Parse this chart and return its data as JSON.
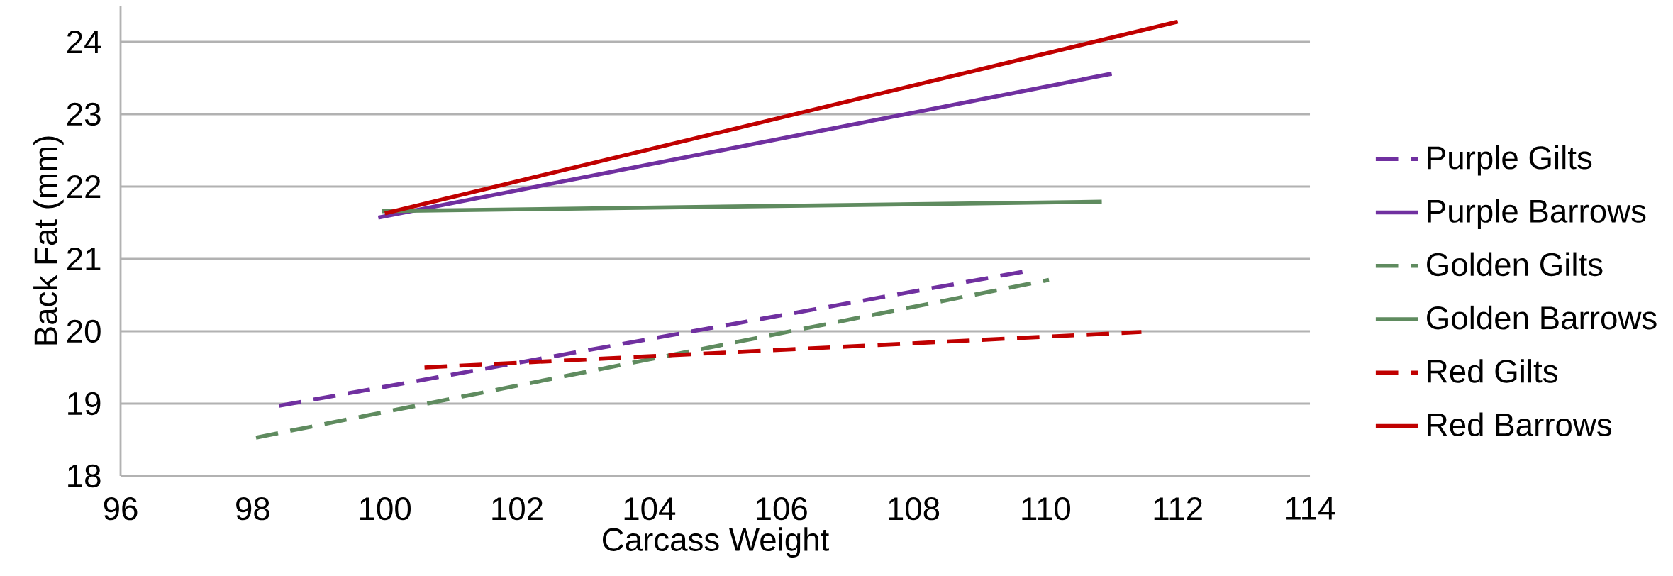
{
  "chart_data": {
    "type": "line",
    "xlabel": "Carcass Weight",
    "ylabel": "Back Fat (mm)",
    "xlim": [
      96,
      114
    ],
    "xticks": [
      96,
      98,
      100,
      102,
      104,
      106,
      108,
      110,
      112,
      114
    ],
    "ylim": [
      18,
      24.5
    ],
    "yticks": [
      18,
      19,
      20,
      21,
      22,
      23,
      24
    ],
    "grid": "y",
    "legend": "right",
    "marker": "none",
    "series": [
      {
        "name": "Purple Gilts",
        "color": "#7030a0",
        "line_style": "dashed",
        "x": [
          98.4,
          109.7
        ],
        "values": [
          18.97,
          20.83
        ]
      },
      {
        "name": "Purple Barrows",
        "color": "#7030a0",
        "line_style": "solid",
        "x": [
          99.9,
          111.0
        ],
        "values": [
          21.57,
          23.56
        ]
      },
      {
        "name": "Golden Gilts",
        "color": "#5f8b5f",
        "line_style": "dashed",
        "x": [
          98.05,
          110.05
        ],
        "values": [
          18.53,
          20.71
        ]
      },
      {
        "name": "Golden Barrows",
        "color": "#5f8b5f",
        "line_style": "solid",
        "x": [
          99.95,
          110.85
        ],
        "values": [
          21.66,
          21.79
        ]
      },
      {
        "name": "Red Gilts",
        "color": "#c00000",
        "line_style": "dashed",
        "x": [
          100.6,
          111.45
        ],
        "values": [
          19.5,
          19.99
        ]
      },
      {
        "name": "Red Barrows",
        "color": "#c00000",
        "line_style": "solid",
        "x": [
          100.0,
          112.0
        ],
        "values": [
          21.63,
          24.28
        ]
      }
    ]
  }
}
